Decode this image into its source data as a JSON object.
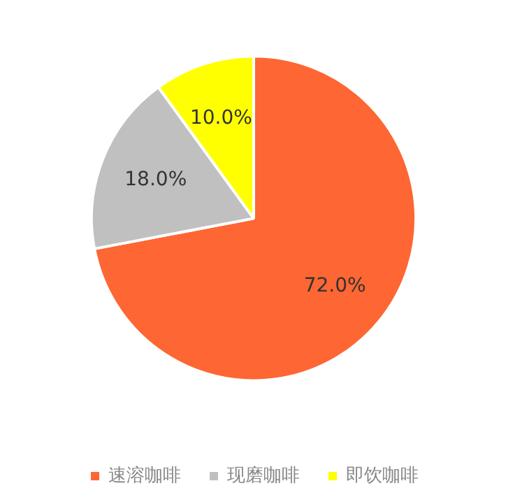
{
  "chart_data": {
    "type": "pie",
    "categories": [
      "速溶咖啡",
      "现磨咖啡",
      "即饮咖啡"
    ],
    "values": [
      72.0,
      18.0,
      10.0
    ],
    "colors": [
      "#fe6633",
      "#c0c0c0",
      "#ffff00"
    ],
    "value_labels": [
      "72.0%",
      "18.0%",
      "10.0%"
    ],
    "legend": "bottom"
  }
}
